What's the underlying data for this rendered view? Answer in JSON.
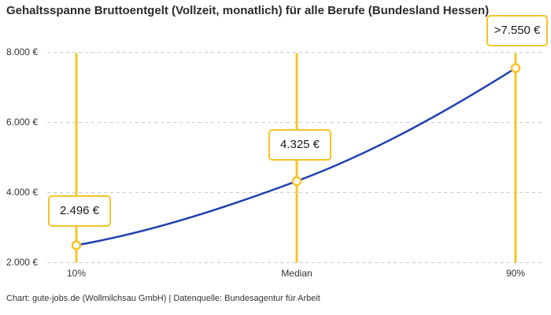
{
  "title": "Gehaltsspanne Bruttoentgelt (Vollzeit, monatlich) für alle Berufe (Bundesland Hessen)",
  "footer": "Chart: gute-jobs.de (Wollmilchsau GmbH) | Datenquelle: Bundesagentur für Arbeit",
  "colors": {
    "accent_yellow": "#f5c429",
    "line_blue": "#1e3fae",
    "grid_gray": "#cccccc",
    "title_text": "#2b2b2b",
    "tick_text": "#333333",
    "point_fill": "#ffffff"
  },
  "chart_data": {
    "type": "line",
    "title": "Gehaltsspanne Bruttoentgelt (Vollzeit, monatlich) für alle Berufe (Bundesland Hessen)",
    "categories": [
      "10%",
      "Median",
      "90%"
    ],
    "values": [
      2496,
      4325,
      7550
    ],
    "point_labels": [
      "2.496 €",
      "4.325 €",
      ">7.550 €"
    ],
    "series": [
      {
        "name": "Bruttoentgelt",
        "values": [
          2496,
          4325,
          7550
        ]
      }
    ],
    "xlabel": "",
    "ylabel": "",
    "ylim": [
      2000,
      8000
    ],
    "ytick_values": [
      2000,
      4000,
      6000,
      8000
    ],
    "ytick_labels": [
      "2.000 €",
      "4.000 €",
      "6.000 €",
      "8.000 €"
    ],
    "grid": "horizontal-dashed",
    "legend": "none",
    "markers": "open-circle",
    "vertical_guides_at_points": true,
    "source_note": "Chart: gute-jobs.de (Wollmilchsau GmbH) | Datenquelle: Bundesagentur für Arbeit"
  }
}
